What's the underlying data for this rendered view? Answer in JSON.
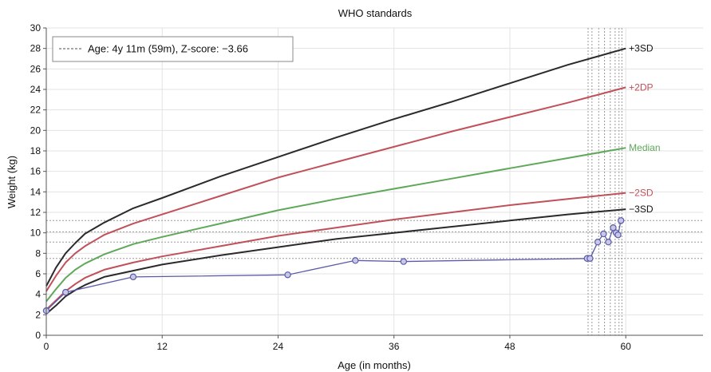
{
  "chart_data": {
    "type": "line",
    "title": "WHO standards",
    "xlabel": "Age (in months)",
    "ylabel": "Weight (kg)",
    "xlim": [
      0,
      68
    ],
    "ylim": [
      0,
      30
    ],
    "x_ticks": [
      0,
      12,
      24,
      36,
      48,
      60
    ],
    "y_ticks": [
      0,
      2,
      4,
      6,
      8,
      10,
      12,
      14,
      16,
      18,
      20,
      22,
      24,
      26,
      28,
      30
    ],
    "grid": true,
    "legend_position": "top-left",
    "legend": {
      "label": "Age: 4y 11m (59m), Z-score: −3.66"
    },
    "x_reference_lines": [
      56.1,
      56.5,
      57.2,
      57.8,
      58.4,
      58.9,
      59.3,
      59.6
    ],
    "y_reference_lines": [
      7.5,
      9.1,
      10.1,
      11.2
    ],
    "series": [
      {
        "name": "+3SD",
        "color": "#2a2a2a",
        "x": [
          0,
          1,
          2,
          3,
          4,
          6,
          9,
          12,
          18,
          24,
          30,
          36,
          42,
          48,
          54,
          60
        ],
        "values": [
          4.8,
          6.6,
          8.0,
          9.0,
          9.9,
          11.0,
          12.4,
          13.4,
          15.5,
          17.4,
          19.3,
          21.1,
          22.8,
          24.6,
          26.4,
          28.0
        ]
      },
      {
        "name": "+2DP",
        "color": "#c0505a",
        "x": [
          0,
          1,
          2,
          3,
          4,
          6,
          9,
          12,
          18,
          24,
          30,
          36,
          42,
          48,
          54,
          60
        ],
        "values": [
          4.3,
          5.8,
          7.1,
          8.0,
          8.7,
          9.8,
          10.9,
          11.8,
          13.6,
          15.4,
          16.9,
          18.4,
          19.9,
          21.3,
          22.7,
          24.2
        ]
      },
      {
        "name": "Median",
        "color": "#5fa85a",
        "x": [
          0,
          1,
          2,
          3,
          4,
          6,
          9,
          12,
          18,
          24,
          30,
          36,
          42,
          48,
          54,
          60
        ],
        "values": [
          3.3,
          4.5,
          5.6,
          6.4,
          7.0,
          7.9,
          8.9,
          9.6,
          10.9,
          12.2,
          13.3,
          14.3,
          15.3,
          16.3,
          17.3,
          18.3
        ]
      },
      {
        "name": "−2SD",
        "color": "#c0505a",
        "x": [
          0,
          1,
          2,
          3,
          4,
          6,
          9,
          12,
          18,
          24,
          30,
          36,
          42,
          48,
          54,
          60
        ],
        "values": [
          2.5,
          3.4,
          4.3,
          5.0,
          5.6,
          6.4,
          7.1,
          7.7,
          8.7,
          9.7,
          10.5,
          11.3,
          12.0,
          12.7,
          13.3,
          13.9
        ]
      },
      {
        "name": "−3SD",
        "color": "#2a2a2a",
        "x": [
          0,
          1,
          2,
          3,
          4,
          6,
          9,
          12,
          18,
          24,
          30,
          36,
          42,
          48,
          54,
          60
        ],
        "values": [
          2.1,
          2.9,
          3.8,
          4.4,
          4.9,
          5.7,
          6.3,
          6.9,
          7.8,
          8.6,
          9.4,
          10.0,
          10.6,
          11.2,
          11.8,
          12.3
        ]
      },
      {
        "name": "",
        "color": "#5a5aa8",
        "marker": "circle",
        "x": [
          0,
          2,
          9,
          25,
          32,
          37,
          56,
          56.3,
          57.1,
          57.7,
          58.2,
          58.7,
          59.0,
          59.2,
          59.5
        ],
        "values": [
          2.4,
          4.2,
          5.7,
          5.9,
          7.3,
          7.2,
          7.5,
          7.5,
          9.1,
          9.9,
          9.1,
          10.5,
          10.0,
          9.8,
          11.2
        ]
      }
    ]
  }
}
